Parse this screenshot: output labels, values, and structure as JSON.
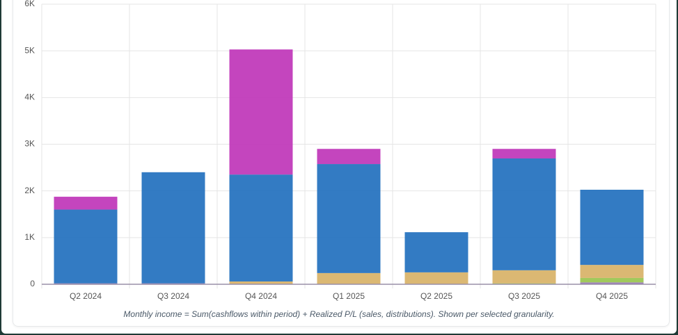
{
  "chart_data": {
    "type": "stacked-bar",
    "categories": [
      "Q2 2024",
      "Q3 2024",
      "Q4 2024",
      "Q1 2025",
      "Q2 2025",
      "Q3 2025",
      "Q4 2025"
    ],
    "series": [
      {
        "color": "#9a7ab8",
        "values": [
          20,
          20,
          0,
          0,
          0,
          0,
          40
        ]
      },
      {
        "color": "#9cc653",
        "values": [
          0,
          0,
          0,
          0,
          0,
          20,
          95
        ]
      },
      {
        "color": "#d9b46c",
        "values": [
          0,
          0,
          60,
          240,
          255,
          280,
          280
        ]
      },
      {
        "color": "#2874c0",
        "values": [
          1580,
          2380,
          2290,
          2335,
          860,
          2395,
          1610
        ]
      },
      {
        "color": "#c13bbb",
        "values": [
          275,
          0,
          2680,
          325,
          0,
          205,
          0
        ]
      }
    ],
    "ylim": [
      0,
      6000
    ],
    "yticks": [
      {
        "value": 0,
        "label": "0"
      },
      {
        "value": 1000,
        "label": "1K"
      },
      {
        "value": 2000,
        "label": "2K"
      },
      {
        "value": 3000,
        "label": "3K"
      },
      {
        "value": 4000,
        "label": "4K"
      },
      {
        "value": 5000,
        "label": "5K"
      },
      {
        "value": 6000,
        "label": "6K"
      }
    ],
    "grid": true,
    "footnote": "Monthly income = Sum(cashflows within period) + Realized P/L (sales, distributions). Shown per selected granularity."
  }
}
